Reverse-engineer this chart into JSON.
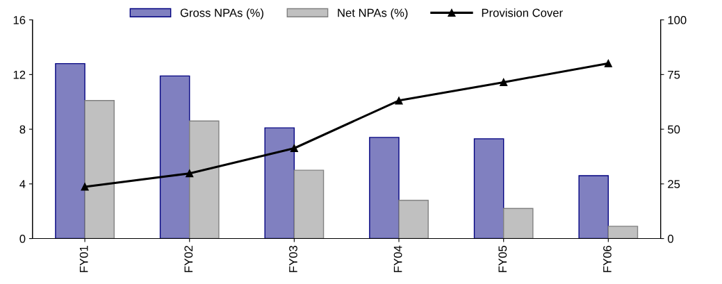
{
  "chart_data": {
    "type": "bar",
    "categories": [
      "FY01",
      "FY02",
      "FY03",
      "FY04",
      "FY05",
      "FY06"
    ],
    "series": [
      {
        "name": "Gross NPAs (%)",
        "color": "#8080c0",
        "values": [
          12.8,
          11.9,
          8.1,
          7.4,
          7.3,
          4.6
        ]
      },
      {
        "name": "Net NPAs (%)",
        "color": "#c0c0c0",
        "values": [
          10.1,
          8.6,
          5.0,
          2.8,
          2.2,
          0.9
        ]
      },
      {
        "name": "Provision Cover",
        "type": "line",
        "axis": "y2",
        "color": "#000000",
        "marker": "triangle",
        "values": [
          23.7,
          29.8,
          41.3,
          63.1,
          71.5,
          80.1
        ]
      }
    ],
    "ylim": [
      0,
      16
    ],
    "yticks": [
      0,
      4,
      8,
      12,
      16
    ],
    "y2lim": [
      0,
      100
    ],
    "y2ticks": [
      0,
      25,
      50,
      75,
      100
    ],
    "grid": false,
    "legend": "top"
  }
}
